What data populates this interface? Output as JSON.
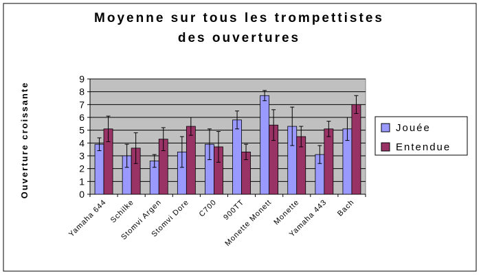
{
  "chart_data": {
    "type": "bar",
    "title": [
      "Moyenne sur tous les trompettistes",
      "des ouvertures"
    ],
    "y_label": "Ouverture croissante",
    "categories": [
      "Yamaha 644",
      "Schilke",
      "Stomvi Argen",
      "Stomvi Dore",
      "C700",
      "900TT",
      "Monette Monett",
      "Monette",
      "Yamaha 443",
      "Bach"
    ],
    "series": [
      {
        "name": "Jouée",
        "color": "#9999ff",
        "values": [
          3.9,
          3.0,
          2.6,
          3.3,
          3.9,
          5.8,
          7.7,
          5.3,
          3.1,
          5.1
        ],
        "errors": [
          0.5,
          0.9,
          0.5,
          1.2,
          1.2,
          0.7,
          0.4,
          1.5,
          0.7,
          0.9
        ]
      },
      {
        "name": "Entendue",
        "color": "#993366",
        "values": [
          5.1,
          3.6,
          4.3,
          5.3,
          3.7,
          3.3,
          5.4,
          4.5,
          5.1,
          7.0
        ],
        "errors": [
          1.0,
          1.2,
          0.9,
          0.7,
          1.2,
          0.6,
          1.2,
          0.8,
          0.6,
          0.7
        ]
      }
    ],
    "ylim": [
      0,
      9
    ],
    "yticks": [
      0,
      1,
      2,
      3,
      4,
      5,
      6,
      7,
      8,
      9
    ],
    "grid": true,
    "legend": "right"
  }
}
